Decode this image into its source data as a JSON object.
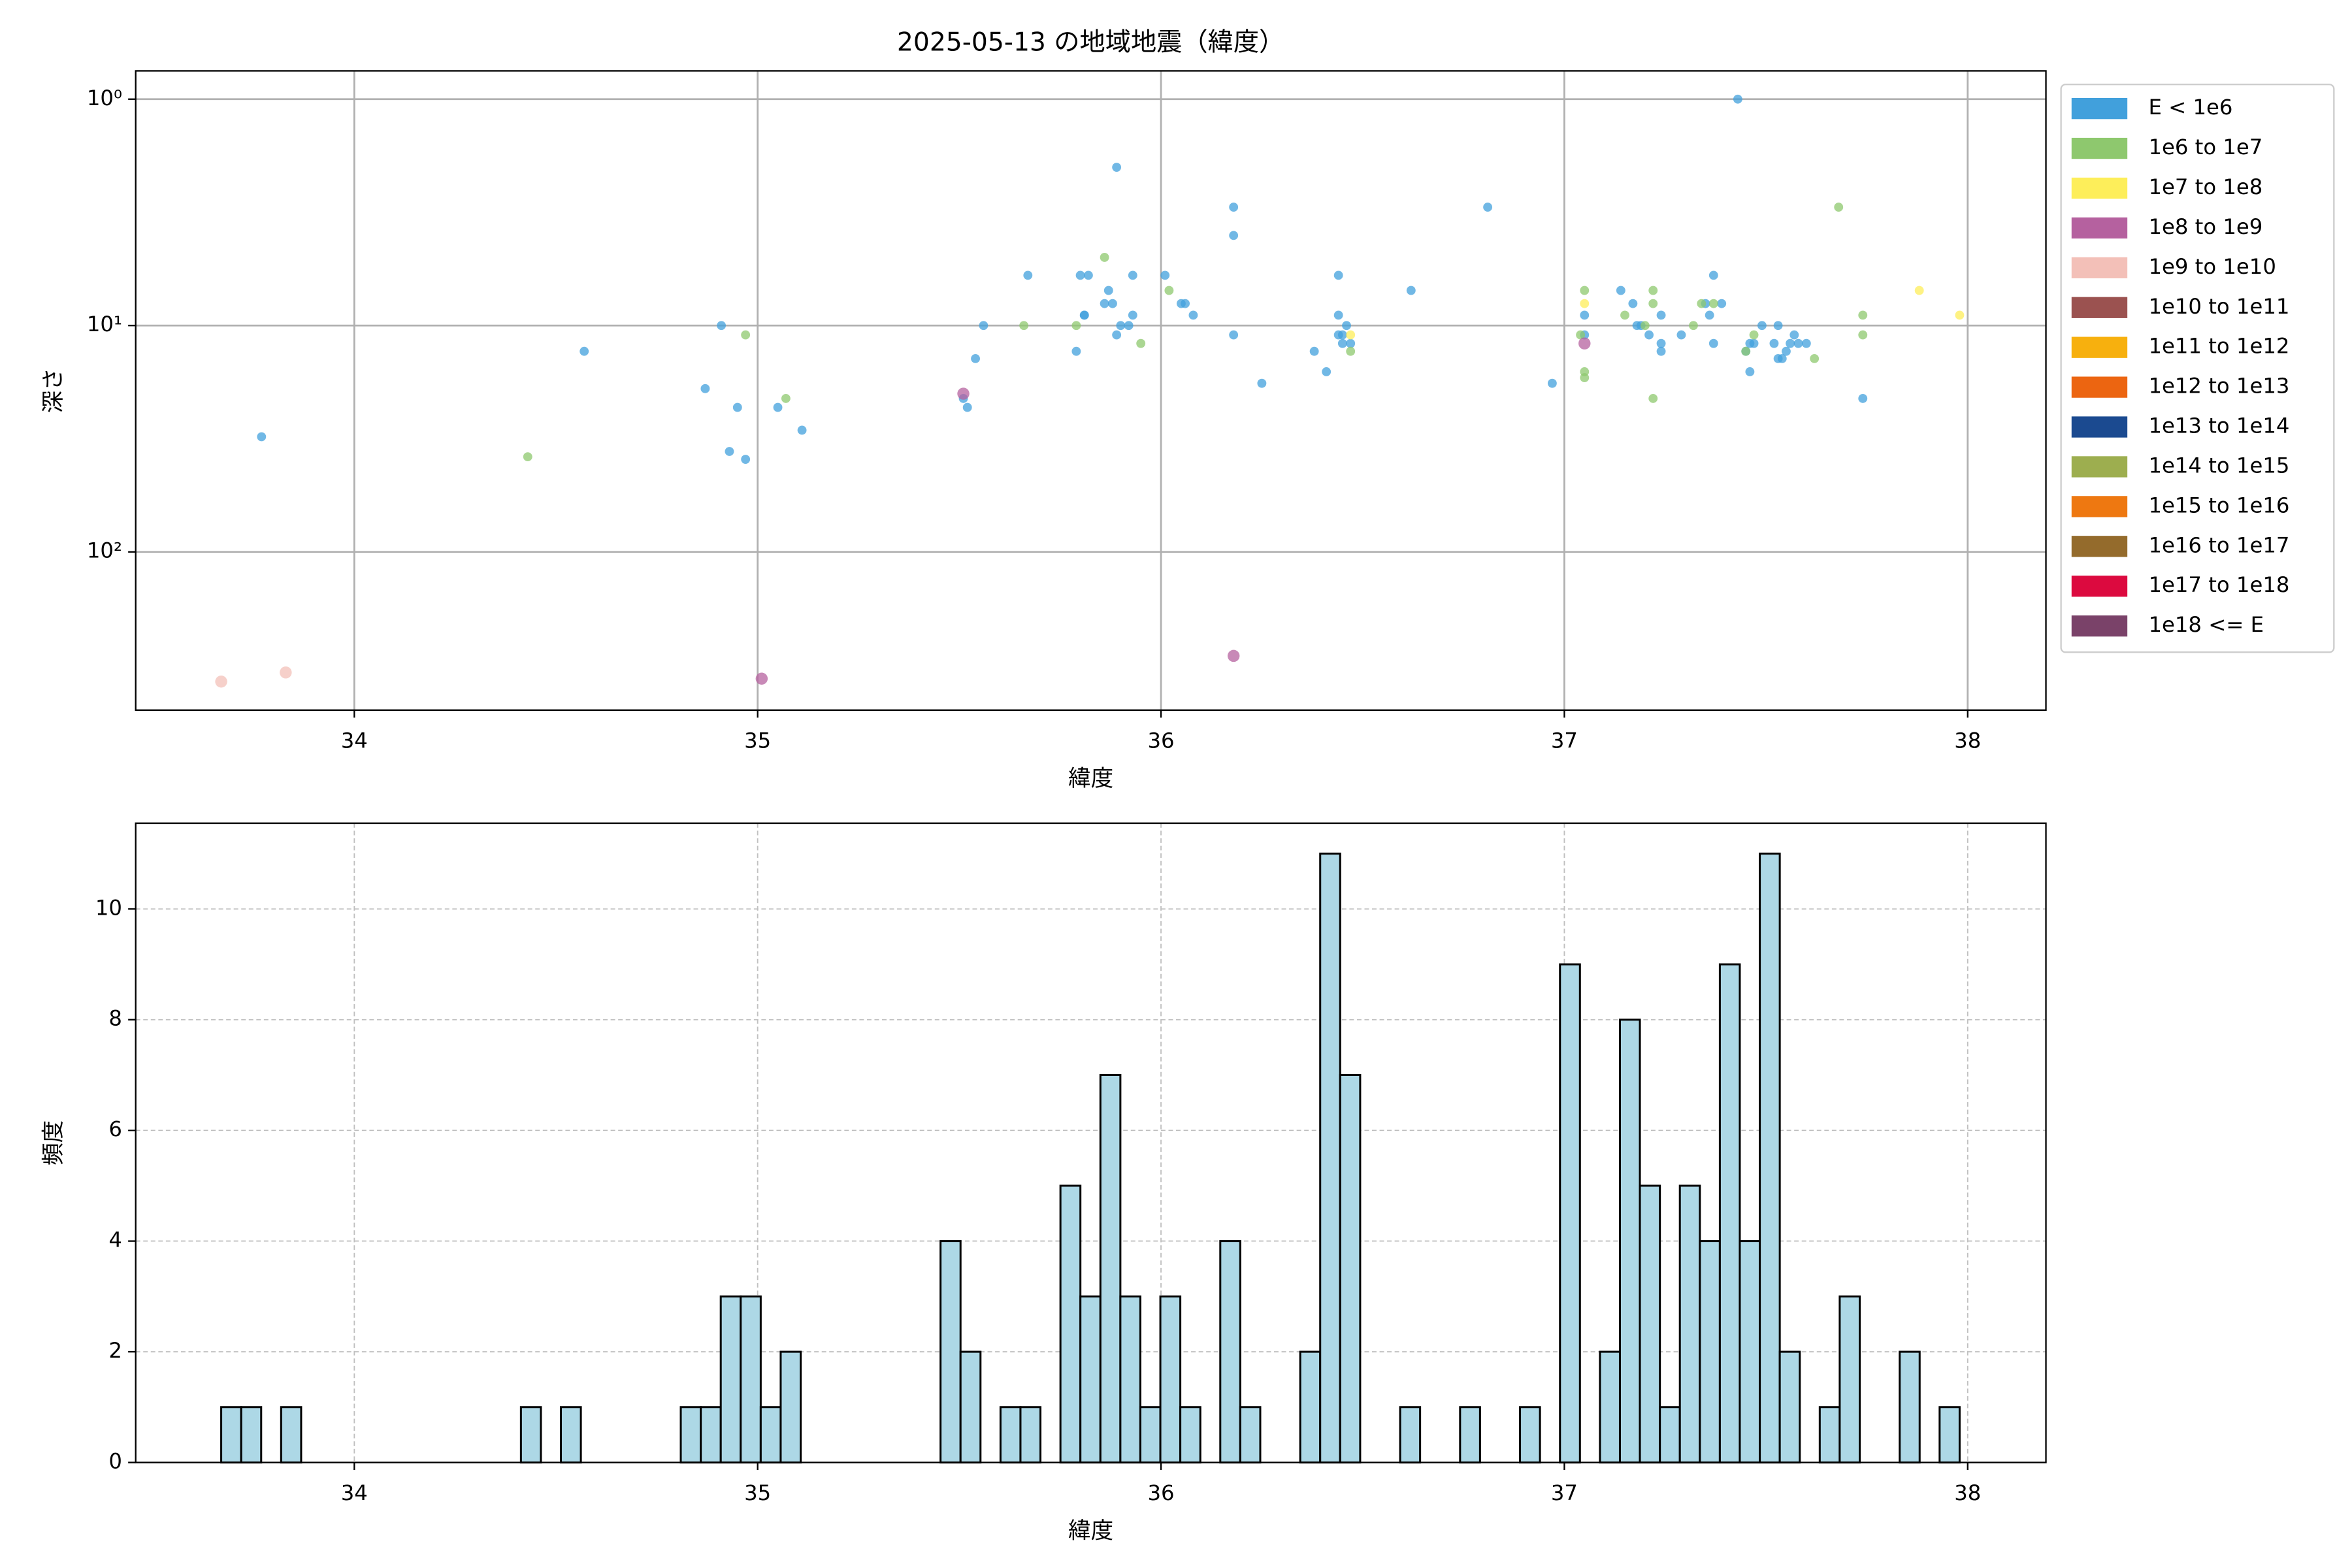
{
  "chart_data": [
    {
      "type": "scatter",
      "title": "2025-05-13 の地域地震（緯度）",
      "x_label": "緯度",
      "y_label": "深さ",
      "xlim": [
        33.458,
        38.194
      ],
      "xticks": [
        34,
        35,
        36,
        37,
        38
      ],
      "ylim": [
        0.75,
        500
      ],
      "yscale": "log",
      "y_inverted": true,
      "yticks": [
        {
          "value": 1,
          "label": "10⁰"
        },
        {
          "value": 10,
          "label": "10¹"
        },
        {
          "value": 100,
          "label": "10²"
        }
      ],
      "grid": true,
      "legend": "outside-upper-right",
      "series": [
        {
          "name": "E < 1e6",
          "color": "#41a0dc",
          "x": [
            33.77,
            34.57,
            34.87,
            34.91,
            34.93,
            34.95,
            34.97,
            35.05,
            35.11,
            35.51,
            35.52,
            35.54,
            35.56,
            35.67,
            35.79,
            35.8,
            35.81,
            35.81,
            35.82,
            35.86,
            35.87,
            35.88,
            35.89,
            35.89,
            35.9,
            35.92,
            35.93,
            35.93,
            36.01,
            36.05,
            36.06,
            36.08,
            36.18,
            36.18,
            36.18,
            36.25,
            36.38,
            36.41,
            36.44,
            36.44,
            36.44,
            36.45,
            36.46,
            36.45,
            36.47,
            36.62,
            36.81,
            36.97,
            37.05,
            37.05,
            37.14,
            37.17,
            37.18,
            37.19,
            37.21,
            37.24,
            37.24,
            37.24,
            37.29,
            37.35,
            37.36,
            37.37,
            37.37,
            37.39,
            37.43,
            37.45,
            37.46,
            37.46,
            37.47,
            37.49,
            37.52,
            37.53,
            37.53,
            37.54,
            37.55,
            37.56,
            37.57,
            37.58,
            37.6,
            37.74
          ],
          "values": [
            31,
            13,
            19,
            10,
            36,
            23,
            39,
            23,
            29,
            21,
            23,
            14,
            10,
            6,
            13,
            6,
            9,
            9,
            6,
            8,
            7,
            8,
            11,
            2,
            10,
            10,
            6,
            9,
            6,
            8,
            8,
            9,
            3,
            4,
            11,
            18,
            13,
            16,
            6,
            9,
            11,
            11,
            10,
            12,
            12,
            7,
            3,
            18,
            9,
            11,
            7,
            8,
            10,
            10,
            11,
            12,
            13,
            9,
            11,
            8,
            9,
            12,
            6,
            8,
            1,
            13,
            16,
            12,
            12,
            10,
            12,
            10,
            14,
            14,
            13,
            12,
            11,
            12,
            12,
            21
          ]
        },
        {
          "name": "1e6 to 1e7",
          "color": "#8ec86e",
          "x": [
            34.43,
            34.97,
            35.07,
            35.66,
            35.79,
            35.86,
            35.95,
            36.02,
            36.47,
            37.04,
            37.05,
            37.05,
            37.05,
            37.15,
            37.2,
            37.22,
            37.22,
            37.22,
            37.32,
            37.34,
            37.37,
            37.45,
            37.47,
            37.62,
            37.68,
            37.74,
            37.74
          ],
          "values": [
            38,
            11,
            21,
            10,
            10,
            5,
            12,
            7,
            13,
            11,
            16,
            17,
            7,
            9,
            10,
            7,
            8,
            21,
            10,
            8,
            8,
            13,
            11,
            14,
            3,
            9,
            11
          ]
        },
        {
          "name": "1e7 to 1e8",
          "color": "#fdee5a",
          "x": [
            36.47,
            37.05,
            37.88,
            37.98
          ],
          "values": [
            11,
            8,
            7,
            9
          ]
        },
        {
          "name": "1e8 to 1e9",
          "color": "#b5619f",
          "x": [
            35.01,
            35.51,
            36.18,
            37.05
          ],
          "values": [
            363,
            20,
            288,
            12
          ]
        },
        {
          "name": "1e9 to 1e10",
          "color": "#f3c0b8",
          "x": [
            33.67,
            33.83
          ],
          "values": [
            374,
            341
          ]
        },
        {
          "name": "1e10 to 1e11",
          "color": "#9b5250",
          "x": [],
          "values": []
        },
        {
          "name": "1e11 to 1e12",
          "color": "#f7b00e",
          "x": [],
          "values": []
        },
        {
          "name": "1e12 to 1e13",
          "color": "#ec6511",
          "x": [],
          "values": []
        },
        {
          "name": "1e13 to 1e14",
          "color": "#1b4a90",
          "x": [],
          "values": []
        },
        {
          "name": "1e14 to 1e15",
          "color": "#9dae4f",
          "x": [],
          "values": []
        },
        {
          "name": "1e15 to 1e16",
          "color": "#ee7811",
          "x": [],
          "values": []
        },
        {
          "name": "1e16 to 1e17",
          "color": "#946b2c",
          "x": [],
          "values": []
        },
        {
          "name": "1e17 to 1e18",
          "color": "#dc0a3f",
          "x": [],
          "values": []
        },
        {
          "name": "1e18 <= E",
          "color": "#7a4269",
          "x": [],
          "values": []
        }
      ]
    },
    {
      "type": "histogram",
      "x_label": "緯度",
      "y_label": "頻度",
      "xlim": [
        33.458,
        38.194
      ],
      "xticks": [
        34,
        35,
        36,
        37,
        38
      ],
      "ylim": [
        0,
        11.55
      ],
      "yticks": [
        0,
        2,
        4,
        6,
        8,
        10
      ],
      "grid": true,
      "color": "#add8e6",
      "edgecolor": "#000000",
      "bins": [
        33.67,
        33.7195,
        33.7691,
        33.8186,
        33.8682,
        33.9177,
        33.9672,
        34.0168,
        34.0663,
        34.1159,
        34.1654,
        34.2149,
        34.2645,
        34.314,
        34.3636,
        34.4131,
        34.4626,
        34.5122,
        34.5617,
        34.6113,
        34.6608,
        34.7103,
        34.7599,
        34.8094,
        34.859,
        34.9085,
        34.958,
        35.0076,
        35.0571,
        35.1067,
        35.1562,
        35.2057,
        35.2553,
        35.3048,
        35.3544,
        35.4039,
        35.4534,
        35.503,
        35.5525,
        35.6021,
        35.6516,
        35.7011,
        35.7507,
        35.8002,
        35.8498,
        35.8993,
        35.9488,
        35.9984,
        36.0479,
        36.0975,
        36.147,
        36.1965,
        36.2461,
        36.2956,
        36.3452,
        36.3947,
        36.4442,
        36.4938,
        36.5433,
        36.5929,
        36.6424,
        36.6919,
        36.7415,
        36.791,
        36.8406,
        36.8901,
        36.9396,
        36.9892,
        37.0387,
        37.0883,
        37.1378,
        37.1873,
        37.2369,
        37.2864,
        37.336,
        37.3855,
        37.435,
        37.4846,
        37.5341,
        37.5837,
        37.6332,
        37.6827,
        37.7323,
        37.7818,
        37.8314,
        37.8809,
        37.9304,
        37.98
      ],
      "values": [
        1,
        1,
        0,
        1,
        0,
        0,
        0,
        0,
        0,
        0,
        0,
        0,
        0,
        0,
        0,
        1,
        0,
        1,
        0,
        0,
        0,
        0,
        0,
        1,
        1,
        3,
        3,
        1,
        2,
        0,
        0,
        0,
        0,
        0,
        0,
        0,
        4,
        2,
        0,
        1,
        1,
        0,
        5,
        3,
        7,
        3,
        1,
        3,
        1,
        0,
        4,
        1,
        0,
        0,
        2,
        11,
        7,
        0,
        0,
        1,
        0,
        0,
        1,
        0,
        0,
        1,
        0,
        9,
        0,
        2,
        8,
        5,
        1,
        5,
        4,
        9,
        4,
        11,
        2,
        0,
        1,
        3,
        0,
        0,
        2,
        0,
        1
      ]
    }
  ]
}
